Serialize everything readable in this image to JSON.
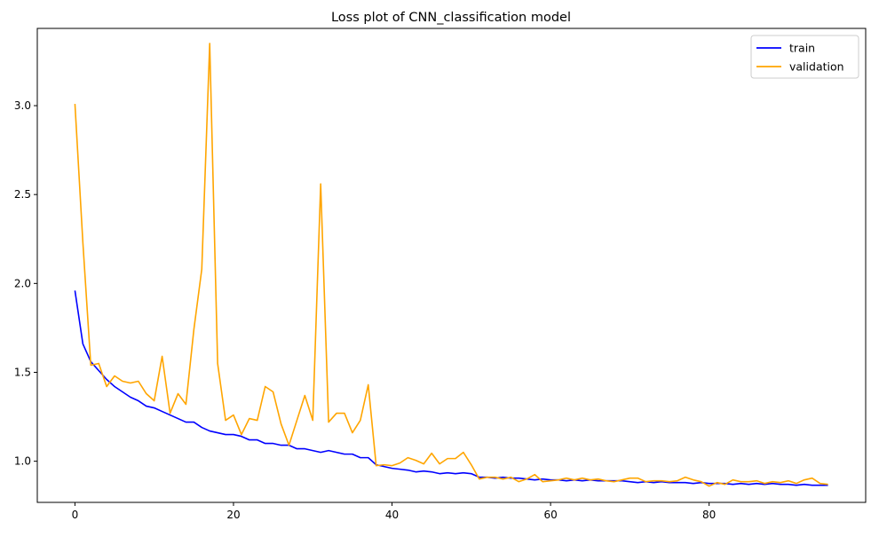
{
  "chart_data": {
    "type": "line",
    "title": "Loss plot of CNN_classification model",
    "xlabel": "",
    "ylabel": "",
    "xlim": [
      -4.75,
      99.75
    ],
    "ylim": [
      0.7685,
      3.4345
    ],
    "xticks": [
      0,
      20,
      40,
      60,
      80
    ],
    "xtick_labels": [
      "0",
      "20",
      "40",
      "60",
      "80"
    ],
    "yticks": [
      1.0,
      1.5,
      2.0,
      2.5,
      3.0
    ],
    "ytick_labels": [
      "1.0",
      "1.5",
      "2.0",
      "2.5",
      "3.0"
    ],
    "grid": false,
    "legend": "top-right",
    "x": [
      0,
      1,
      2,
      3,
      4,
      5,
      6,
      7,
      8,
      9,
      10,
      11,
      12,
      13,
      14,
      15,
      16,
      17,
      18,
      19,
      20,
      21,
      22,
      23,
      24,
      25,
      26,
      27,
      28,
      29,
      30,
      31,
      32,
      33,
      34,
      35,
      36,
      37,
      38,
      39,
      40,
      41,
      42,
      43,
      44,
      45,
      46,
      47,
      48,
      49,
      50,
      51,
      52,
      53,
      54,
      55,
      56,
      57,
      58,
      59,
      60,
      61,
      62,
      63,
      64,
      65,
      66,
      67,
      68,
      69,
      70,
      71,
      72,
      73,
      74,
      75,
      76,
      77,
      78,
      79,
      80,
      81,
      82,
      83,
      84,
      85,
      86,
      87,
      88,
      89,
      90,
      91,
      92,
      93,
      94,
      95
    ],
    "series": [
      {
        "name": "train",
        "color": "#0000ff",
        "values": [
          1.96,
          1.66,
          1.56,
          1.51,
          1.46,
          1.42,
          1.39,
          1.36,
          1.34,
          1.31,
          1.3,
          1.28,
          1.26,
          1.24,
          1.22,
          1.22,
          1.19,
          1.17,
          1.16,
          1.15,
          1.15,
          1.14,
          1.12,
          1.12,
          1.1,
          1.1,
          1.09,
          1.09,
          1.07,
          1.07,
          1.06,
          1.05,
          1.06,
          1.05,
          1.04,
          1.04,
          1.02,
          1.02,
          0.98,
          0.97,
          0.96,
          0.955,
          0.95,
          0.94,
          0.945,
          0.94,
          0.93,
          0.935,
          0.93,
          0.935,
          0.93,
          0.91,
          0.91,
          0.905,
          0.91,
          0.905,
          0.905,
          0.9,
          0.895,
          0.9,
          0.895,
          0.895,
          0.89,
          0.895,
          0.89,
          0.895,
          0.89,
          0.89,
          0.89,
          0.89,
          0.885,
          0.88,
          0.885,
          0.88,
          0.885,
          0.88,
          0.88,
          0.88,
          0.875,
          0.88,
          0.875,
          0.875,
          0.875,
          0.87,
          0.875,
          0.87,
          0.875,
          0.87,
          0.875,
          0.87,
          0.87,
          0.865,
          0.87,
          0.865,
          0.865,
          0.865
        ]
      },
      {
        "name": "validation",
        "color": "#ffa500",
        "values": [
          3.01,
          2.23,
          1.54,
          1.55,
          1.42,
          1.48,
          1.45,
          1.44,
          1.45,
          1.38,
          1.34,
          1.59,
          1.27,
          1.38,
          1.32,
          1.74,
          2.08,
          3.35,
          1.55,
          1.23,
          1.26,
          1.15,
          1.24,
          1.23,
          1.42,
          1.39,
          1.21,
          1.09,
          1.23,
          1.37,
          1.23,
          2.56,
          1.22,
          1.27,
          1.27,
          1.16,
          1.23,
          1.43,
          0.975,
          0.98,
          0.975,
          0.99,
          1.02,
          1.005,
          0.985,
          1.045,
          0.985,
          1.015,
          1.015,
          1.05,
          0.98,
          0.9,
          0.91,
          0.91,
          0.9,
          0.91,
          0.885,
          0.9,
          0.925,
          0.885,
          0.89,
          0.895,
          0.905,
          0.895,
          0.905,
          0.895,
          0.9,
          0.89,
          0.885,
          0.895,
          0.905,
          0.905,
          0.885,
          0.89,
          0.89,
          0.885,
          0.89,
          0.91,
          0.895,
          0.885,
          0.86,
          0.88,
          0.87,
          0.895,
          0.885,
          0.885,
          0.89,
          0.875,
          0.885,
          0.88,
          0.89,
          0.875,
          0.895,
          0.905,
          0.875,
          0.87
        ]
      }
    ]
  }
}
